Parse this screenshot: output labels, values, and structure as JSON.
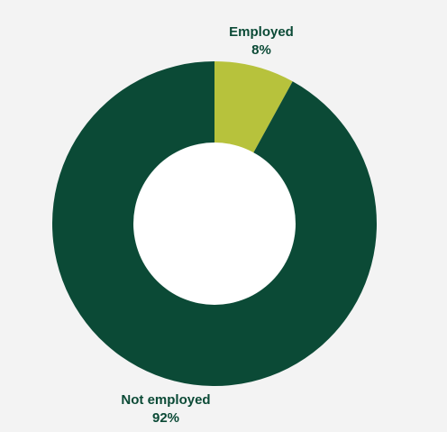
{
  "chart_data": {
    "type": "pie",
    "donut": true,
    "slices": [
      {
        "label": "Employed",
        "value": 8,
        "value_label": "8%",
        "color": "#b7c23c"
      },
      {
        "label": "Not employed",
        "value": 92,
        "value_label": "92%",
        "color": "#0b4a36"
      }
    ],
    "title": "",
    "legend": false,
    "start_angle_deg": 0,
    "direction": "clockwise"
  },
  "colors": {
    "background": "#f3f3f3",
    "label_text": "#0b4a36",
    "hole": "#ffffff"
  }
}
